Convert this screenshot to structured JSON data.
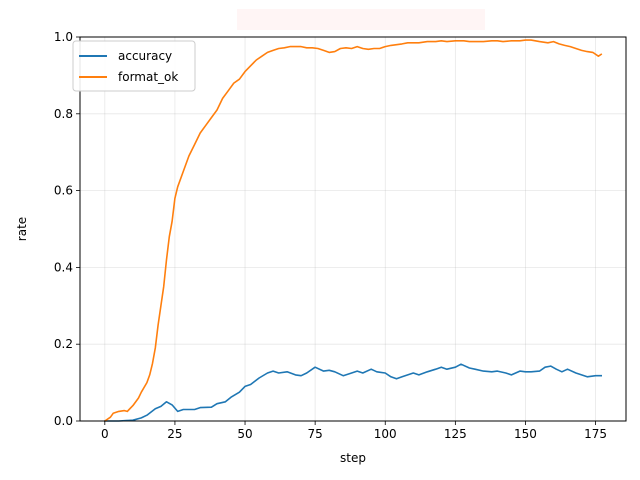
{
  "chart_data": {
    "type": "line",
    "title": "",
    "xlabel": "step",
    "ylabel": "rate",
    "xlim": [
      -8.85,
      185.85
    ],
    "ylim": [
      0,
      1.0
    ],
    "x_ticks": [
      0,
      25,
      50,
      75,
      100,
      125,
      150,
      175
    ],
    "y_ticks": [
      0.0,
      0.2,
      0.4,
      0.6,
      0.8,
      1.0
    ],
    "x_tick_labels": [
      "0",
      "25",
      "50",
      "75",
      "100",
      "125",
      "150",
      "175"
    ],
    "y_tick_labels": [
      "0.0",
      "0.2",
      "0.4",
      "0.6",
      "0.8",
      "1.0"
    ],
    "grid": true,
    "legend_position": "upper-left",
    "series": [
      {
        "name": "accuracy",
        "color": "#1f77b4",
        "points": [
          [
            0,
            0.0
          ],
          [
            5,
            0.0
          ],
          [
            10,
            0.002
          ],
          [
            13,
            0.008
          ],
          [
            15,
            0.015
          ],
          [
            18,
            0.032
          ],
          [
            20,
            0.038
          ],
          [
            22,
            0.05
          ],
          [
            24,
            0.042
          ],
          [
            26,
            0.025
          ],
          [
            28,
            0.03
          ],
          [
            32,
            0.03
          ],
          [
            34,
            0.035
          ],
          [
            38,
            0.036
          ],
          [
            40,
            0.045
          ],
          [
            43,
            0.05
          ],
          [
            45,
            0.062
          ],
          [
            48,
            0.075
          ],
          [
            50,
            0.09
          ],
          [
            52,
            0.095
          ],
          [
            55,
            0.112
          ],
          [
            58,
            0.125
          ],
          [
            60,
            0.13
          ],
          [
            62,
            0.125
          ],
          [
            65,
            0.128
          ],
          [
            68,
            0.12
          ],
          [
            70,
            0.118
          ],
          [
            72,
            0.125
          ],
          [
            75,
            0.14
          ],
          [
            78,
            0.13
          ],
          [
            80,
            0.132
          ],
          [
            82,
            0.128
          ],
          [
            85,
            0.118
          ],
          [
            88,
            0.125
          ],
          [
            90,
            0.13
          ],
          [
            92,
            0.125
          ],
          [
            95,
            0.135
          ],
          [
            97,
            0.128
          ],
          [
            100,
            0.125
          ],
          [
            102,
            0.115
          ],
          [
            104,
            0.11
          ],
          [
            106,
            0.115
          ],
          [
            108,
            0.12
          ],
          [
            110,
            0.125
          ],
          [
            112,
            0.12
          ],
          [
            115,
            0.128
          ],
          [
            118,
            0.135
          ],
          [
            120,
            0.14
          ],
          [
            122,
            0.135
          ],
          [
            125,
            0.14
          ],
          [
            127,
            0.148
          ],
          [
            130,
            0.138
          ],
          [
            132,
            0.135
          ],
          [
            135,
            0.13
          ],
          [
            138,
            0.128
          ],
          [
            140,
            0.13
          ],
          [
            143,
            0.125
          ],
          [
            145,
            0.12
          ],
          [
            148,
            0.13
          ],
          [
            150,
            0.128
          ],
          [
            152,
            0.128
          ],
          [
            155,
            0.13
          ],
          [
            157,
            0.14
          ],
          [
            159,
            0.143
          ],
          [
            161,
            0.135
          ],
          [
            163,
            0.128
          ],
          [
            165,
            0.135
          ],
          [
            168,
            0.125
          ],
          [
            170,
            0.12
          ],
          [
            172,
            0.115
          ],
          [
            175,
            0.118
          ],
          [
            177,
            0.118
          ]
        ]
      },
      {
        "name": "format_ok",
        "color": "#ff7f0e",
        "points": [
          [
            0,
            0.0
          ],
          [
            2,
            0.01
          ],
          [
            3,
            0.02
          ],
          [
            5,
            0.025
          ],
          [
            7,
            0.027
          ],
          [
            8,
            0.025
          ],
          [
            10,
            0.04
          ],
          [
            12,
            0.06
          ],
          [
            13,
            0.075
          ],
          [
            15,
            0.1
          ],
          [
            16,
            0.12
          ],
          [
            17,
            0.15
          ],
          [
            18,
            0.19
          ],
          [
            19,
            0.25
          ],
          [
            20,
            0.3
          ],
          [
            21,
            0.35
          ],
          [
            22,
            0.42
          ],
          [
            23,
            0.48
          ],
          [
            24,
            0.52
          ],
          [
            25,
            0.58
          ],
          [
            26,
            0.61
          ],
          [
            28,
            0.65
          ],
          [
            30,
            0.69
          ],
          [
            32,
            0.72
          ],
          [
            34,
            0.75
          ],
          [
            36,
            0.77
          ],
          [
            38,
            0.79
          ],
          [
            40,
            0.81
          ],
          [
            42,
            0.84
          ],
          [
            44,
            0.86
          ],
          [
            46,
            0.88
          ],
          [
            48,
            0.89
          ],
          [
            50,
            0.91
          ],
          [
            52,
            0.925
          ],
          [
            54,
            0.94
          ],
          [
            56,
            0.95
          ],
          [
            58,
            0.96
          ],
          [
            60,
            0.965
          ],
          [
            62,
            0.97
          ],
          [
            64,
            0.972
          ],
          [
            66,
            0.975
          ],
          [
            68,
            0.975
          ],
          [
            70,
            0.975
          ],
          [
            72,
            0.972
          ],
          [
            74,
            0.972
          ],
          [
            76,
            0.97
          ],
          [
            78,
            0.965
          ],
          [
            80,
            0.96
          ],
          [
            82,
            0.962
          ],
          [
            84,
            0.97
          ],
          [
            86,
            0.972
          ],
          [
            88,
            0.97
          ],
          [
            90,
            0.975
          ],
          [
            92,
            0.97
          ],
          [
            94,
            0.968
          ],
          [
            96,
            0.97
          ],
          [
            98,
            0.97
          ],
          [
            100,
            0.975
          ],
          [
            102,
            0.978
          ],
          [
            104,
            0.98
          ],
          [
            106,
            0.982
          ],
          [
            108,
            0.985
          ],
          [
            110,
            0.985
          ],
          [
            112,
            0.985
          ],
          [
            115,
            0.988
          ],
          [
            118,
            0.988
          ],
          [
            120,
            0.99
          ],
          [
            122,
            0.988
          ],
          [
            125,
            0.99
          ],
          [
            128,
            0.99
          ],
          [
            130,
            0.988
          ],
          [
            132,
            0.988
          ],
          [
            135,
            0.988
          ],
          [
            138,
            0.99
          ],
          [
            140,
            0.99
          ],
          [
            142,
            0.988
          ],
          [
            145,
            0.99
          ],
          [
            148,
            0.99
          ],
          [
            150,
            0.992
          ],
          [
            152,
            0.992
          ],
          [
            155,
            0.988
          ],
          [
            158,
            0.985
          ],
          [
            160,
            0.988
          ],
          [
            162,
            0.982
          ],
          [
            164,
            0.978
          ],
          [
            166,
            0.975
          ],
          [
            168,
            0.97
          ],
          [
            170,
            0.965
          ],
          [
            172,
            0.962
          ],
          [
            174,
            0.96
          ],
          [
            176,
            0.95
          ],
          [
            177,
            0.955
          ]
        ]
      }
    ]
  }
}
